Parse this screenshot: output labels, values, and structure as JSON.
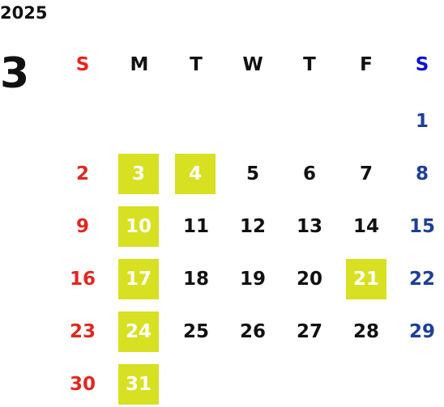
{
  "year": "2025",
  "month": "3",
  "weekdays": [
    "S",
    "M",
    "T",
    "W",
    "T",
    "F",
    "S"
  ],
  "weeks": [
    [
      null,
      null,
      null,
      null,
      null,
      null,
      1
    ],
    [
      2,
      3,
      4,
      5,
      6,
      7,
      8
    ],
    [
      9,
      10,
      11,
      12,
      13,
      14,
      15
    ],
    [
      16,
      17,
      18,
      19,
      20,
      21,
      22
    ],
    [
      23,
      24,
      25,
      26,
      27,
      28,
      29
    ],
    [
      30,
      31,
      null,
      null,
      null,
      null,
      null
    ]
  ],
  "highlighted_days": [
    3,
    4,
    10,
    17,
    21,
    24,
    31
  ],
  "highlight_color": "#d7e021",
  "sunday_header_color": "#e8231c",
  "saturday_header_color": "#0a12d8",
  "sunday_color": "#e0281f",
  "saturday_color": "#1e3f96",
  "weekday_color": "#111111"
}
